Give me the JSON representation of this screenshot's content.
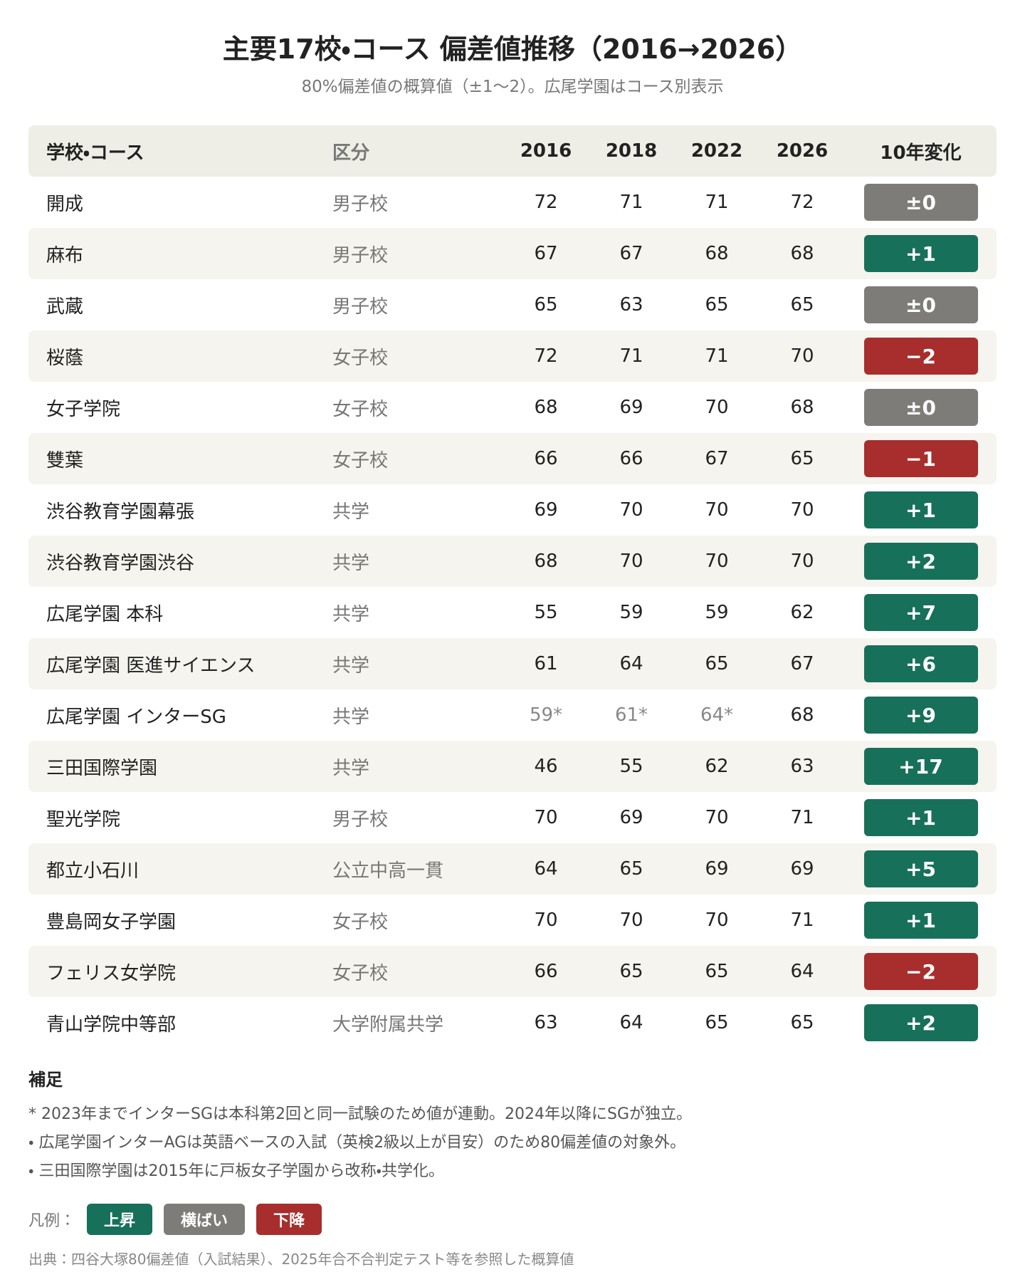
{
  "header": {
    "title": "主要17校・コース 偏差値推移（2016→2026）",
    "subtitle": "80%偏差値の概算値（±1〜2）。広尾学園はコース別表示"
  },
  "table": {
    "columns": [
      "学校・コース",
      "区分",
      "2016",
      "2018",
      "2022",
      "2026",
      "10年変化"
    ],
    "rows": [
      {
        "name": "開成",
        "category": "男子校",
        "values": [
          72,
          71,
          71,
          72
        ],
        "change": {
          "label": "±0",
          "color": "#7d7c78"
        }
      },
      {
        "name": "麻布",
        "category": "男子校",
        "values": [
          67,
          67,
          68,
          68
        ],
        "change": {
          "label": "+1",
          "color": "#17705a"
        }
      },
      {
        "name": "武蔵",
        "category": "男子校",
        "values": [
          65,
          63,
          65,
          65
        ],
        "change": {
          "label": "±0",
          "color": "#7d7c78"
        }
      },
      {
        "name": "桜蔭",
        "category": "女子校",
        "values": [
          72,
          71,
          71,
          70
        ],
        "change": {
          "label": "−2",
          "color": "#a82d2d"
        }
      },
      {
        "name": "女子学院",
        "category": "女子校",
        "values": [
          68,
          69,
          70,
          68
        ],
        "change": {
          "label": "±0",
          "color": "#7d7c78"
        }
      },
      {
        "name": "雙葉",
        "category": "女子校",
        "values": [
          66,
          66,
          67,
          65
        ],
        "change": {
          "label": "−1",
          "color": "#a82d2d"
        }
      },
      {
        "name": "渋谷教育学園幕張",
        "category": "共学",
        "values": [
          69,
          70,
          70,
          70
        ],
        "change": {
          "label": "+1",
          "color": "#17705a"
        }
      },
      {
        "name": "渋谷教育学園渋谷",
        "category": "共学",
        "values": [
          68,
          70,
          70,
          70
        ],
        "change": {
          "label": "+2",
          "color": "#17705a"
        }
      },
      {
        "name": "広尾学園 本科",
        "category": "共学",
        "values": [
          55,
          59,
          59,
          62
        ],
        "change": {
          "label": "+7",
          "color": "#17705a"
        }
      },
      {
        "name": "広尾学園 医進サイエンス",
        "category": "共学",
        "values": [
          61,
          64,
          65,
          67
        ],
        "change": {
          "label": "+6",
          "color": "#17705a"
        }
      },
      {
        "name": "広尾学園 インターSG",
        "category": "共学",
        "values": [
          "59*",
          "61*",
          "64*",
          68
        ],
        "change": {
          "label": "+9",
          "color": "#17705a"
        }
      },
      {
        "name": "三田国際学園",
        "category": "共学",
        "values": [
          46,
          55,
          62,
          63
        ],
        "change": {
          "label": "+17",
          "color": "#17705a"
        }
      },
      {
        "name": "聖光学院",
        "category": "男子校",
        "values": [
          70,
          69,
          70,
          71
        ],
        "change": {
          "label": "+1",
          "color": "#17705a"
        }
      },
      {
        "name": "都立小石川",
        "category": "公立中高一貫",
        "values": [
          64,
          65,
          69,
          69
        ],
        "change": {
          "label": "+5",
          "color": "#17705a"
        }
      },
      {
        "name": "豊島岡女子学園",
        "category": "女子校",
        "values": [
          70,
          70,
          70,
          71
        ],
        "change": {
          "label": "+1",
          "color": "#17705a"
        }
      },
      {
        "name": "フェリス女学院",
        "category": "女子校",
        "values": [
          66,
          65,
          65,
          64
        ],
        "change": {
          "label": "−2",
          "color": "#a82d2d"
        }
      },
      {
        "name": "青山学院中等部",
        "category": "大学附属共学",
        "values": [
          63,
          64,
          65,
          65
        ],
        "change": {
          "label": "+2",
          "color": "#17705a"
        }
      }
    ]
  },
  "notes": {
    "title": "補足",
    "items": [
      "* 2023年までインターSGは本科第2回と同一試験のため値が連動。2024年以降にSGが独立。",
      "・ 広尾学園インターAGは英語ベースの入試（英検2級以上が目安）のため80偏差値の対象外。",
      "・ 三田国際学園は2015年に戸板女子学園から改称・共学化。"
    ]
  },
  "legend": {
    "label": "凡例：",
    "items": [
      {
        "label": "上昇",
        "color": "#17705a"
      },
      {
        "label": "横ばい",
        "color": "#7d7c78"
      },
      {
        "label": "下降",
        "color": "#a82d2d"
      }
    ]
  },
  "source": "出典：四谷大塚80偏差値（入試結果）、2025年合不合判定テスト等を参照した概算値"
}
